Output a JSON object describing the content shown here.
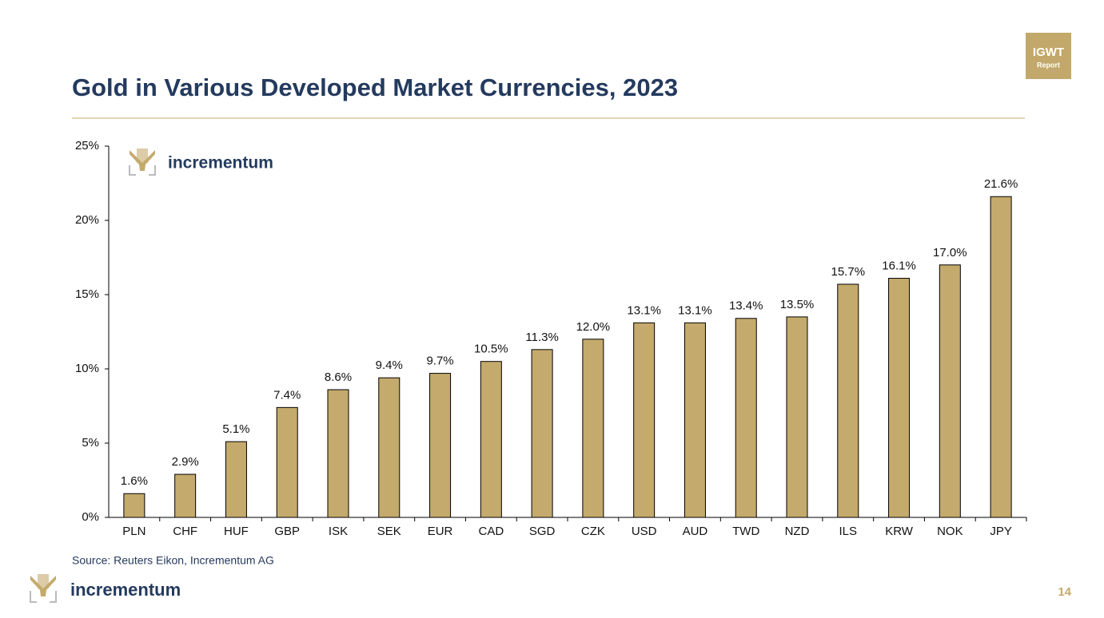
{
  "chart_data": {
    "type": "bar",
    "title": "Gold in Various Developed Market Currencies, 2023",
    "categories": [
      "PLN",
      "CHF",
      "HUF",
      "GBP",
      "ISK",
      "SEK",
      "EUR",
      "CAD",
      "SGD",
      "CZK",
      "USD",
      "AUD",
      "TWD",
      "NZD",
      "ILS",
      "KRW",
      "NOK",
      "JPY"
    ],
    "values": [
      1.6,
      2.9,
      5.1,
      7.4,
      8.6,
      9.4,
      9.7,
      10.5,
      11.3,
      12.0,
      13.1,
      13.1,
      13.4,
      13.5,
      15.7,
      16.1,
      17.0,
      21.6
    ],
    "value_labels": [
      "1.6%",
      "2.9%",
      "5.1%",
      "7.4%",
      "8.6%",
      "9.4%",
      "9.7%",
      "10.5%",
      "11.3%",
      "12.0%",
      "13.1%",
      "13.1%",
      "13.4%",
      "13.5%",
      "15.7%",
      "16.1%",
      "17.0%",
      "21.6%"
    ],
    "color": "#c4aa6c",
    "ylim": [
      0,
      25
    ],
    "yticks": [
      {
        "value": 0,
        "label": "0%"
      },
      {
        "value": 5,
        "label": "5%"
      },
      {
        "value": 10,
        "label": "10%"
      },
      {
        "value": 15,
        "label": "15%"
      },
      {
        "value": 20,
        "label": "20%"
      },
      {
        "value": 25,
        "label": "25%"
      }
    ],
    "grid": false,
    "source": "Source: Reuters Eikon, Incrementum AG",
    "logo": "incrementum"
  },
  "badge": {
    "title": "IGWT",
    "subtitle": "Report"
  },
  "footer": {
    "logo": "incrementum",
    "page": "14"
  }
}
